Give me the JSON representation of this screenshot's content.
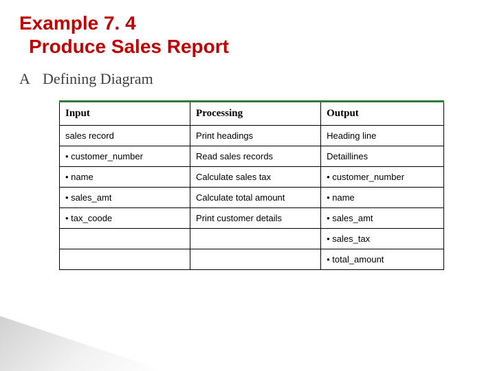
{
  "colors": {
    "title": "#c00000",
    "section": "#404040",
    "table_top_border": "#2e7d32",
    "cell_border": "#000000",
    "text": "#000000",
    "background": "#ffffff"
  },
  "font_sizes": {
    "title": 28,
    "section": 22,
    "th": 15,
    "td": 13
  },
  "title_line1": "Example 7. 4",
  "title_line2": "Produce Sales Report",
  "section_letter": "A",
  "section_text": "Defining Diagram",
  "table": {
    "columns": [
      "Input",
      "Processing",
      "Output"
    ],
    "column_widths_pct": [
      34,
      34,
      32
    ],
    "rows": [
      [
        "sales record",
        "Print headings",
        "Heading line"
      ],
      [
        "•  customer_number",
        "Read sales records",
        "Detaillines"
      ],
      [
        "•  name",
        "Calculate sales tax",
        "•  customer_number"
      ],
      [
        "•  sales_amt",
        "Calculate total amount",
        "•  name"
      ],
      [
        "•  tax_coode",
        "Print customer details",
        "•  sales_amt"
      ],
      [
        "",
        "",
        "•  sales_tax"
      ],
      [
        "",
        "",
        "• total_amount"
      ]
    ]
  }
}
